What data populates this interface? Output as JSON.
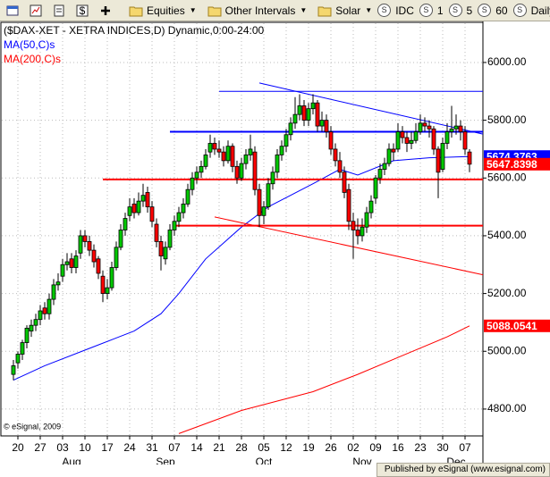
{
  "toolbar": {
    "menus": [
      "Equities",
      "Other Intervals",
      "Solar"
    ],
    "intervals": [
      "IDC",
      "1",
      "5",
      "60",
      "Daily"
    ]
  },
  "chart_data": {
    "type": "candlestick",
    "title": "($DAX-XET - XETRA INDICES,D) Dynamic,0:00-24:00",
    "copyright": "© eSignal, 2009",
    "categories": [
      null,
      "20",
      null,
      null,
      null,
      null,
      "27",
      null,
      null,
      null,
      null,
      "03",
      null,
      null,
      null,
      null,
      "10",
      null,
      null,
      null,
      null,
      "17",
      null,
      null,
      null,
      null,
      "24",
      null,
      null,
      null,
      null,
      "31",
      null,
      null,
      null,
      null,
      "07",
      null,
      null,
      null,
      null,
      "14",
      null,
      null,
      null,
      null,
      "21",
      null,
      null,
      null,
      null,
      "28",
      null,
      null,
      null,
      null,
      "05",
      null,
      null,
      null,
      null,
      "12",
      null,
      null,
      null,
      null,
      "19",
      null,
      null,
      null,
      null,
      "26",
      null,
      null,
      null,
      null,
      "02",
      null,
      null,
      null,
      null,
      "09",
      null,
      null,
      null,
      null,
      "16",
      null,
      null,
      null,
      null,
      "23",
      null,
      null,
      null,
      null,
      "30",
      null,
      null,
      null,
      null,
      "07",
      null
    ],
    "months": [
      {
        "label": "Aug",
        "index": 13
      },
      {
        "label": "Sep",
        "index": 34
      },
      {
        "label": "Oct",
        "index": 56
      },
      {
        "label": "Nov",
        "index": 78
      },
      {
        "label": "Dec",
        "index": 99
      }
    ],
    "up_color": "#00c800",
    "down_color": "#ff0000",
    "close_color": "#ff0000",
    "ohlc": [
      [
        4920,
        4970,
        4900,
        4950
      ],
      [
        4960,
        5000,
        4940,
        4990
      ],
      [
        4990,
        5040,
        4970,
        5030
      ],
      [
        5030,
        5090,
        5010,
        5080
      ],
      [
        5070,
        5110,
        5050,
        5090
      ],
      [
        5090,
        5130,
        5070,
        5110
      ],
      [
        5110,
        5160,
        5090,
        5140
      ],
      [
        5150,
        5170,
        5110,
        5130
      ],
      [
        5130,
        5200,
        5110,
        5180
      ],
      [
        5180,
        5250,
        5160,
        5230
      ],
      [
        5230,
        5270,
        5210,
        5240
      ],
      [
        5260,
        5320,
        5240,
        5300
      ],
      [
        5300,
        5340,
        5280,
        5310
      ],
      [
        5320,
        5340,
        5270,
        5290
      ],
      [
        5290,
        5350,
        5270,
        5330
      ],
      [
        5340,
        5420,
        5320,
        5400
      ],
      [
        5400,
        5420,
        5360,
        5380
      ],
      [
        5380,
        5400,
        5330,
        5350
      ],
      [
        5350,
        5370,
        5290,
        5310
      ],
      [
        5320,
        5330,
        5250,
        5270
      ],
      [
        5260,
        5280,
        5170,
        5200
      ],
      [
        5200,
        5250,
        5180,
        5220
      ],
      [
        5220,
        5310,
        5210,
        5290
      ],
      [
        5290,
        5380,
        5280,
        5360
      ],
      [
        5360,
        5440,
        5350,
        5420
      ],
      [
        5420,
        5480,
        5400,
        5460
      ],
      [
        5470,
        5530,
        5450,
        5500
      ],
      [
        5510,
        5530,
        5460,
        5480
      ],
      [
        5480,
        5550,
        5470,
        5520
      ],
      [
        5520,
        5580,
        5500,
        5540
      ],
      [
        5550,
        5570,
        5480,
        5500
      ],
      [
        5500,
        5520,
        5430,
        5450
      ],
      [
        5440,
        5460,
        5360,
        5380
      ],
      [
        5380,
        5400,
        5280,
        5330
      ],
      [
        5320,
        5380,
        5300,
        5360
      ],
      [
        5360,
        5440,
        5350,
        5420
      ],
      [
        5420,
        5470,
        5400,
        5450
      ],
      [
        5450,
        5500,
        5430,
        5480
      ],
      [
        5480,
        5530,
        5460,
        5510
      ],
      [
        5510,
        5580,
        5500,
        5560
      ],
      [
        5560,
        5620,
        5540,
        5600
      ],
      [
        5600,
        5640,
        5580,
        5620
      ],
      [
        5620,
        5660,
        5600,
        5640
      ],
      [
        5640,
        5700,
        5630,
        5680
      ],
      [
        5690,
        5750,
        5670,
        5720
      ],
      [
        5720,
        5740,
        5680,
        5700
      ],
      [
        5700,
        5730,
        5670,
        5690
      ],
      [
        5690,
        5710,
        5640,
        5660
      ],
      [
        5660,
        5730,
        5650,
        5710
      ],
      [
        5710,
        5720,
        5620,
        5640
      ],
      [
        5640,
        5660,
        5580,
        5600
      ],
      [
        5600,
        5670,
        5590,
        5650
      ],
      [
        5650,
        5700,
        5630,
        5680
      ],
      [
        5680,
        5750,
        5660,
        5700
      ],
      [
        5690,
        5710,
        5540,
        5560
      ],
      [
        5560,
        5580,
        5430,
        5470
      ],
      [
        5470,
        5520,
        5440,
        5500
      ],
      [
        5500,
        5600,
        5490,
        5580
      ],
      [
        5580,
        5640,
        5560,
        5620
      ],
      [
        5620,
        5700,
        5600,
        5680
      ],
      [
        5680,
        5730,
        5660,
        5710
      ],
      [
        5710,
        5770,
        5690,
        5750
      ],
      [
        5750,
        5810,
        5730,
        5790
      ],
      [
        5790,
        5880,
        5770,
        5820
      ],
      [
        5820,
        5890,
        5800,
        5850
      ],
      [
        5850,
        5870,
        5780,
        5800
      ],
      [
        5800,
        5860,
        5780,
        5840
      ],
      [
        5840,
        5890,
        5820,
        5860
      ],
      [
        5860,
        5870,
        5760,
        5780
      ],
      [
        5780,
        5830,
        5760,
        5800
      ],
      [
        5800,
        5820,
        5740,
        5760
      ],
      [
        5760,
        5780,
        5680,
        5700
      ],
      [
        5700,
        5720,
        5640,
        5660
      ],
      [
        5660,
        5690,
        5600,
        5620
      ],
      [
        5620,
        5640,
        5530,
        5550
      ],
      [
        5560,
        5580,
        5420,
        5450
      ],
      [
        5450,
        5480,
        5320,
        5420
      ],
      [
        5420,
        5460,
        5370,
        5400
      ],
      [
        5400,
        5460,
        5380,
        5430
      ],
      [
        5430,
        5500,
        5410,
        5480
      ],
      [
        5480,
        5540,
        5460,
        5520
      ],
      [
        5530,
        5610,
        5510,
        5600
      ],
      [
        5600,
        5650,
        5580,
        5630
      ],
      [
        5630,
        5670,
        5610,
        5650
      ],
      [
        5650,
        5720,
        5640,
        5700
      ],
      [
        5700,
        5720,
        5660,
        5690
      ],
      [
        5700,
        5790,
        5690,
        5760
      ],
      [
        5760,
        5780,
        5720,
        5740
      ],
      [
        5740,
        5760,
        5690,
        5720
      ],
      [
        5720,
        5760,
        5700,
        5730
      ],
      [
        5730,
        5790,
        5720,
        5760
      ],
      [
        5760,
        5820,
        5750,
        5790
      ],
      [
        5790,
        5810,
        5760,
        5780
      ],
      [
        5780,
        5800,
        5740,
        5770
      ],
      [
        5770,
        5780,
        5680,
        5700
      ],
      [
        5700,
        5710,
        5530,
        5620
      ],
      [
        5630,
        5740,
        5620,
        5720
      ],
      [
        5720,
        5790,
        5700,
        5760
      ],
      [
        5760,
        5850,
        5740,
        5770
      ],
      [
        5770,
        5820,
        5750,
        5780
      ],
      [
        5780,
        5800,
        5730,
        5760
      ],
      [
        5760,
        5780,
        5680,
        5700
      ],
      [
        5690,
        5700,
        5620,
        5647.8398
      ]
    ],
    "series": [
      {
        "name": "MA(50,C)s",
        "color": "#0000ff",
        "x": [
          0,
          7,
          17,
          27,
          33,
          37,
          43,
          51,
          57,
          67,
          73,
          77,
          85,
          93,
          102
        ],
        "values": [
          4900,
          4950,
          5010,
          5070,
          5130,
          5200,
          5320,
          5430,
          5500,
          5580,
          5630,
          5610,
          5660,
          5670,
          5674.3763
        ]
      },
      {
        "name": "MA(200,C)s",
        "color": "#ff0000",
        "x": [
          37,
          51,
          67,
          77,
          87,
          97,
          102
        ],
        "values": [
          4715,
          4795,
          4860,
          4920,
          4985,
          5050,
          5088.0541
        ]
      }
    ],
    "drawings": [
      {
        "color": "#0000ff",
        "width": 1,
        "x": [
          55,
          105
        ],
        "values": [
          5929,
          5752
        ]
      },
      {
        "color": "#0000ff",
        "width": 1,
        "x": [
          46,
          105
        ],
        "values": [
          5900,
          5900
        ]
      },
      {
        "color": "#0000ff",
        "width": 2,
        "x": [
          35,
          105
        ],
        "values": [
          5760,
          5760
        ]
      },
      {
        "color": "#ff0000",
        "width": 2,
        "x": [
          20,
          105
        ],
        "values": [
          5595,
          5595
        ]
      },
      {
        "color": "#ff0000",
        "width": 2,
        "x": [
          36,
          105
        ],
        "values": [
          5435,
          5435
        ]
      },
      {
        "color": "#ff0000",
        "width": 1,
        "x": [
          45,
          105
        ],
        "values": [
          5465,
          5265
        ]
      }
    ],
    "xlim": [
      -3,
      105
    ],
    "ylim": [
      4707,
      6139
    ],
    "yticks": [
      {
        "value": 4800,
        "label": "4800.00"
      },
      {
        "value": 5000,
        "label": "5000.00"
      },
      {
        "value": 5200,
        "label": "5200.00"
      },
      {
        "value": 5400,
        "label": "5400.00"
      },
      {
        "value": 5600,
        "label": "5600.00"
      },
      {
        "value": 5800,
        "label": "5800.00"
      },
      {
        "value": 6000,
        "label": "6000.00"
      }
    ],
    "grid": true,
    "last_value_box": true
  },
  "footer": "Published by eSignal (www.esignal.com)"
}
